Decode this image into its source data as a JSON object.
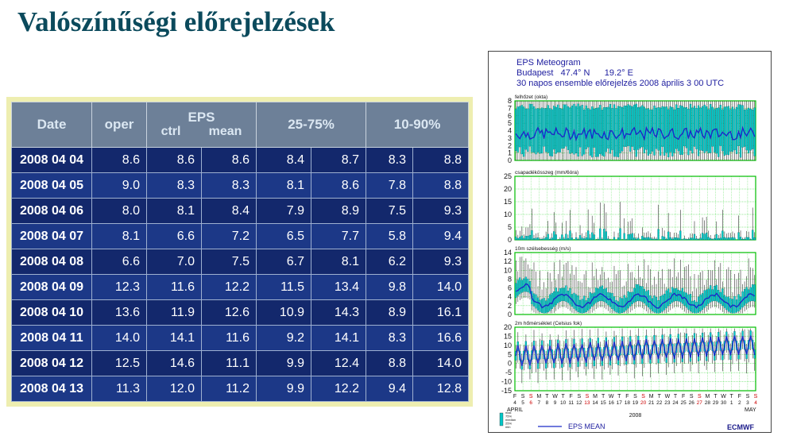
{
  "title": "Valószínűségi előrejelzések",
  "table": {
    "headers": {
      "date": "Date",
      "oper": "oper",
      "eps": "EPS",
      "ctrl": "ctrl",
      "mean": "mean",
      "p25_75": "25-75%",
      "p10_90": "10-90%"
    },
    "rows": [
      [
        "2008 04 04",
        "8.6",
        "8.6",
        "8.6",
        "8.4",
        "8.7",
        "8.3",
        "8.8"
      ],
      [
        "2008 04 05",
        "9.0",
        "8.3",
        "8.3",
        "8.1",
        "8.6",
        "7.8",
        "8.8"
      ],
      [
        "2008 04 06",
        "8.0",
        "8.1",
        "8.4",
        "7.9",
        "8.9",
        "7.5",
        "9.3"
      ],
      [
        "2008 04 07",
        "8.1",
        "6.6",
        "7.2",
        "6.5",
        "7.7",
        "5.8",
        "9.4"
      ],
      [
        "2008 04 08",
        "6.6",
        "7.0",
        "7.5",
        "6.7",
        "8.1",
        "6.2",
        "9.3"
      ],
      [
        "2008 04 09",
        "12.3",
        "11.6",
        "12.2",
        "11.5",
        "13.4",
        "9.8",
        "14.0"
      ],
      [
        "2008 04 10",
        "13.6",
        "11.9",
        "12.6",
        "10.9",
        "14.3",
        "8.9",
        "16.1"
      ],
      [
        "2008 04 11",
        "14.0",
        "14.1",
        "11.6",
        "9.2",
        "14.1",
        "8.3",
        "16.6"
      ],
      [
        "2008 04 12",
        "12.5",
        "14.6",
        "11.1",
        "9.9",
        "12.4",
        "8.8",
        "14.0"
      ],
      [
        "2008 04 13",
        "11.3",
        "12.0",
        "11.2",
        "9.9",
        "12.2",
        "9.4",
        "12.8"
      ]
    ]
  },
  "meteogram": {
    "title_line1": "EPS Meteogram",
    "title_line2": "Budapest   47.4° N      19.2° E",
    "title_line3": "30 napos ensemble előrejelzés 2008 április 3  00 UTC",
    "panels": [
      {
        "label": "felhőzet (okta)",
        "ticks": [
          "8",
          "7",
          "6",
          "5",
          "4",
          "3",
          "2",
          "1",
          "0"
        ]
      },
      {
        "label": "csapadékösszeg (mm/6óra)",
        "ticks": [
          "25",
          "20",
          "15",
          "10",
          "5",
          "0"
        ]
      },
      {
        "label": "10m szélsebesség (m/s)",
        "ticks": [
          "14",
          "12",
          "10",
          "8",
          "6",
          "4",
          "2",
          "0"
        ]
      },
      {
        "label": "2m hőmérséklet (Celsius fok)",
        "ticks": [
          "20",
          "15",
          "10",
          "5",
          "0",
          "-5",
          "-10",
          "-15"
        ]
      }
    ],
    "weekdays": [
      "F",
      "S",
      "S",
      "M",
      "T",
      "W",
      "T",
      "F",
      "S",
      "S",
      "M",
      "T",
      "W",
      "T",
      "F",
      "S",
      "S",
      "M",
      "T",
      "W",
      "T",
      "F",
      "S",
      "S",
      "M",
      "T",
      "W",
      "T",
      "F",
      "S",
      "S"
    ],
    "days": [
      "4",
      "5",
      "6",
      "7",
      "8",
      "9",
      "10",
      "11",
      "12",
      "13",
      "14",
      "15",
      "16",
      "17",
      "18",
      "19",
      "20",
      "21",
      "22",
      "23",
      "24",
      "25",
      "26",
      "27",
      "28",
      "29",
      "30",
      "1",
      "2",
      "3",
      "4"
    ],
    "month_left": "APRIL",
    "month_right": "MAY",
    "year": "2008",
    "legend_box": [
      "max",
      "75%",
      "median",
      "25%",
      "min"
    ],
    "legend_line": "EPS MEAN",
    "logo": "ECMWF",
    "colors": {
      "box": "#00c8c8",
      "line": "#1b2ac8",
      "grid": "#00cc00",
      "frame": "#00bb00"
    }
  }
}
